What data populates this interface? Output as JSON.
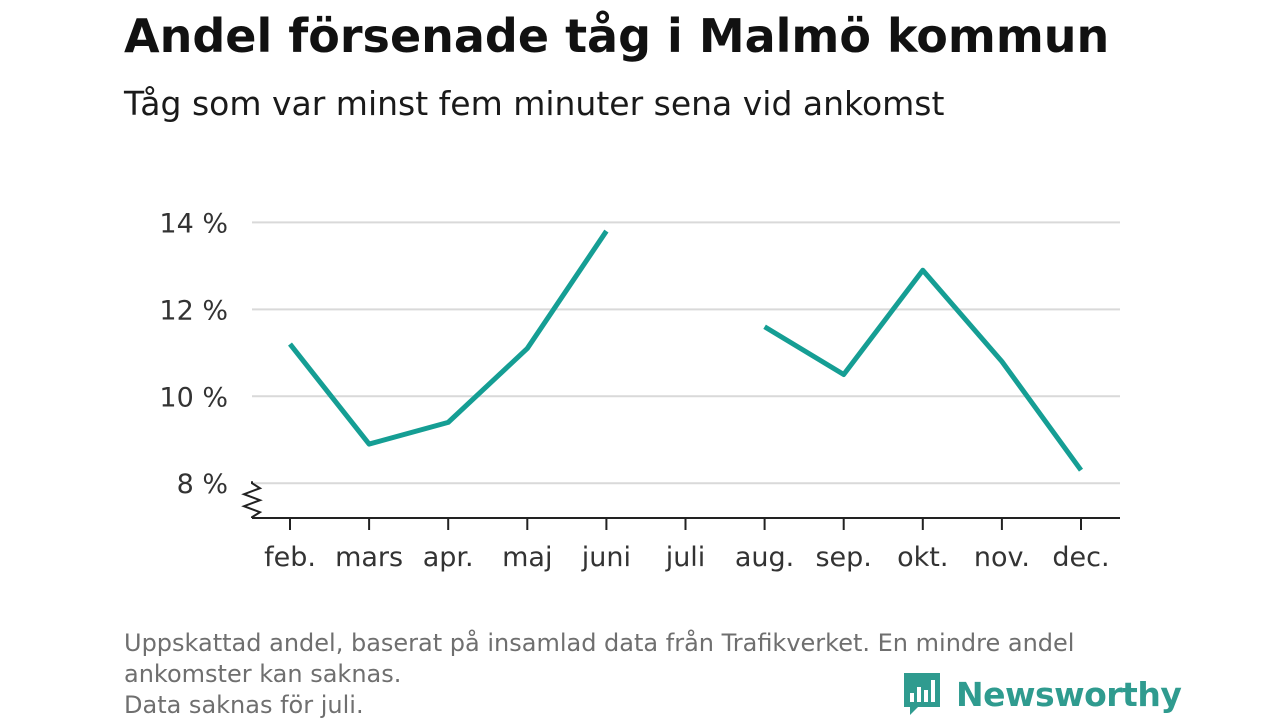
{
  "header": {
    "title": "Andel försenade tåg i Malmö kommun",
    "subtitle": "Tåg som var minst fem minuter sena vid ankomst"
  },
  "footnote": {
    "line1": "Uppskattad andel, baserat på insamlad data från Trafikverket. En mindre andel",
    "line2": "ankomster kan saknas.",
    "line3": "Data saknas för juli."
  },
  "brand": {
    "name": "Newsworthy",
    "icon": "newsworthy-chart-bubble-icon",
    "color": "#2f9b8f"
  },
  "chart_data": {
    "type": "line",
    "categories": [
      "feb.",
      "mars",
      "apr.",
      "maj",
      "juni",
      "juli",
      "aug.",
      "sep.",
      "okt.",
      "nov.",
      "dec."
    ],
    "series": [
      {
        "values": [
          11.2,
          8.9,
          9.4,
          11.1,
          13.8,
          null,
          11.6,
          10.5,
          12.9,
          10.8,
          8.3
        ],
        "color": "#159e94"
      }
    ],
    "y_ticks": [
      8,
      10,
      12,
      14
    ],
    "y_tick_suffix": " %",
    "ylim": [
      7.2,
      14.4
    ],
    "y_axis_break": true,
    "grid": true,
    "legend": "none"
  }
}
